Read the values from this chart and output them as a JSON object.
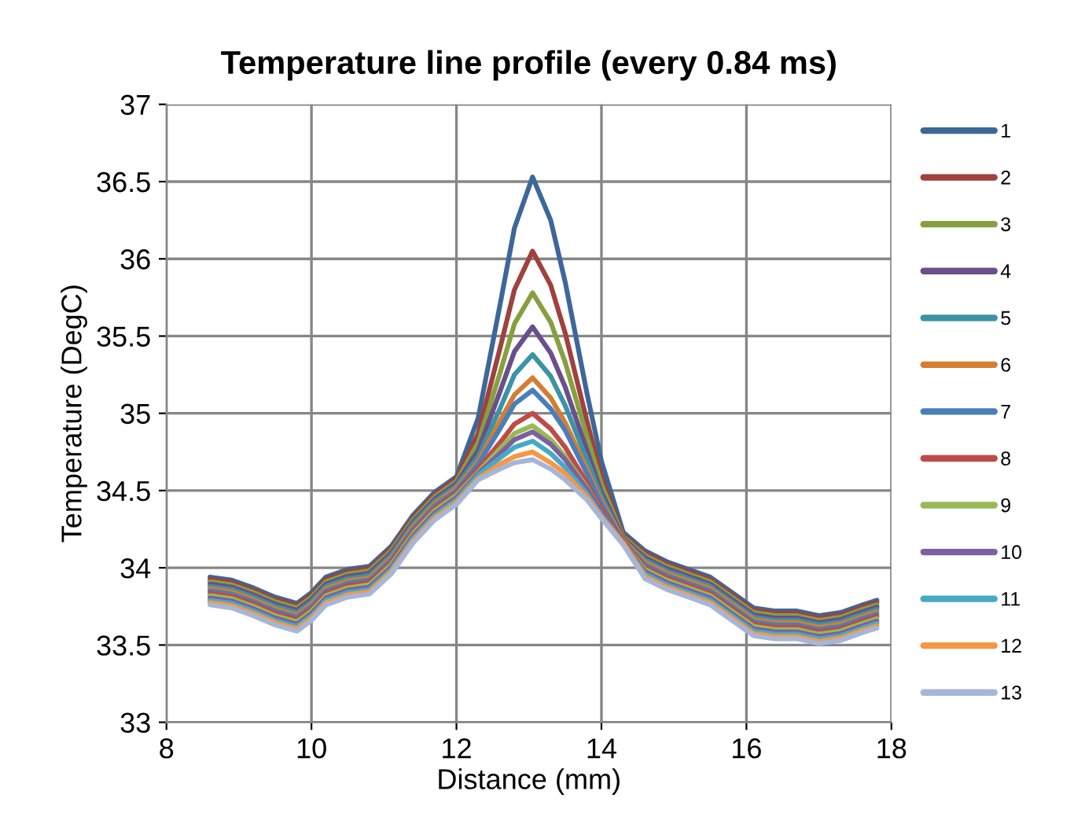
{
  "chart_data": {
    "type": "line",
    "title": "Temperature line profile (every 0.84 ms)",
    "xlabel": "Distance (mm)",
    "ylabel": "Temperature (DegC)",
    "x": [
      8.6,
      8.9,
      9.2,
      9.5,
      9.8,
      10.0,
      10.2,
      10.5,
      10.8,
      11.1,
      11.4,
      11.7,
      12.0,
      12.3,
      12.6,
      12.8,
      13.05,
      13.3,
      13.5,
      13.8,
      14.0,
      14.3,
      14.6,
      14.9,
      15.2,
      15.5,
      15.8,
      16.1,
      16.4,
      16.7,
      17.0,
      17.3,
      17.6,
      17.8
    ],
    "xlim": [
      8,
      18
    ],
    "xticks": [
      8,
      10,
      12,
      14,
      16,
      18
    ],
    "ylim": [
      33,
      37
    ],
    "yticks": [
      33,
      33.5,
      34,
      34.5,
      35,
      35.5,
      36,
      36.5,
      37
    ],
    "grid": true,
    "legend": "right",
    "marker": "none",
    "line_style": "solid",
    "series": [
      {
        "name": "1",
        "color": "#3d6799",
        "values": [
          33.94,
          33.92,
          33.87,
          33.81,
          33.77,
          33.84,
          33.94,
          33.99,
          34.01,
          34.14,
          34.34,
          34.49,
          34.59,
          34.97,
          35.7,
          36.2,
          36.53,
          36.25,
          35.85,
          35.13,
          34.69,
          34.23,
          34.11,
          34.04,
          33.99,
          33.94,
          33.84,
          33.74,
          33.72,
          33.72,
          33.69,
          33.71,
          33.76,
          33.79
        ]
      },
      {
        "name": "2",
        "color": "#a0413e",
        "values": [
          33.925,
          33.905,
          33.855,
          33.795,
          33.755,
          33.825,
          33.925,
          33.975,
          33.995,
          34.125,
          34.325,
          34.475,
          34.575,
          34.87,
          35.42,
          35.8,
          36.05,
          35.83,
          35.52,
          34.95,
          34.59,
          34.21,
          34.095,
          34.025,
          33.975,
          33.925,
          33.825,
          33.725,
          33.705,
          33.705,
          33.675,
          33.695,
          33.745,
          33.775
        ]
      },
      {
        "name": "3",
        "color": "#86a03f",
        "values": [
          33.91,
          33.89,
          33.84,
          33.78,
          33.74,
          33.81,
          33.91,
          33.96,
          33.98,
          34.11,
          34.31,
          34.46,
          34.56,
          34.81,
          35.26,
          35.58,
          35.78,
          35.59,
          35.33,
          34.85,
          34.54,
          34.2,
          34.08,
          34.01,
          33.96,
          33.91,
          33.81,
          33.71,
          33.69,
          33.69,
          33.66,
          33.68,
          33.73,
          33.76
        ]
      },
      {
        "name": "4",
        "color": "#6a4f8a",
        "values": [
          33.895,
          33.875,
          33.825,
          33.765,
          33.725,
          33.795,
          33.895,
          33.945,
          33.965,
          34.095,
          34.295,
          34.445,
          34.545,
          34.76,
          35.14,
          35.4,
          35.56,
          35.39,
          35.17,
          34.76,
          34.49,
          34.19,
          34.065,
          33.995,
          33.945,
          33.895,
          33.795,
          33.695,
          33.675,
          33.675,
          33.645,
          33.665,
          33.715,
          33.745
        ]
      },
      {
        "name": "5",
        "color": "#3a93a7",
        "values": [
          33.88,
          33.86,
          33.81,
          33.75,
          33.71,
          33.78,
          33.88,
          33.93,
          33.95,
          34.08,
          34.28,
          34.43,
          34.53,
          34.72,
          35.03,
          35.25,
          35.38,
          35.24,
          35.05,
          34.7,
          34.46,
          34.18,
          34.05,
          33.98,
          33.93,
          33.88,
          33.78,
          33.68,
          33.66,
          33.66,
          33.63,
          33.65,
          33.7,
          33.73
        ]
      },
      {
        "name": "6",
        "color": "#d57d32",
        "values": [
          33.865,
          33.845,
          33.795,
          33.735,
          33.695,
          33.765,
          33.865,
          33.915,
          33.935,
          34.065,
          34.265,
          34.415,
          34.515,
          34.69,
          34.95,
          35.12,
          35.23,
          35.1,
          34.94,
          34.64,
          34.43,
          34.18,
          34.035,
          33.965,
          33.915,
          33.865,
          33.765,
          33.665,
          33.645,
          33.645,
          33.615,
          33.635,
          33.685,
          33.715
        ]
      },
      {
        "name": "7",
        "color": "#4a7ebb",
        "values": [
          33.85,
          33.83,
          33.78,
          33.72,
          33.68,
          33.75,
          33.85,
          33.9,
          33.92,
          34.05,
          34.25,
          34.4,
          34.5,
          34.67,
          34.9,
          35.06,
          35.15,
          35.03,
          34.89,
          34.61,
          34.41,
          34.17,
          34.02,
          33.95,
          33.9,
          33.85,
          33.75,
          33.65,
          33.63,
          33.63,
          33.6,
          33.62,
          33.67,
          33.7
        ]
      },
      {
        "name": "8",
        "color": "#be4b48",
        "values": [
          33.835,
          33.815,
          33.765,
          33.705,
          33.665,
          33.735,
          33.835,
          33.885,
          33.905,
          34.035,
          34.235,
          34.385,
          34.485,
          34.64,
          34.81,
          34.93,
          35.0,
          34.9,
          34.78,
          34.55,
          34.38,
          34.17,
          34.005,
          33.935,
          33.885,
          33.835,
          33.735,
          33.635,
          33.615,
          33.615,
          33.585,
          33.605,
          33.655,
          33.685
        ]
      },
      {
        "name": "9",
        "color": "#98b954",
        "values": [
          33.82,
          33.8,
          33.75,
          33.69,
          33.65,
          33.72,
          33.82,
          33.87,
          33.89,
          34.02,
          34.22,
          34.37,
          34.47,
          34.62,
          34.77,
          34.87,
          34.92,
          34.83,
          34.72,
          34.52,
          34.36,
          34.16,
          33.99,
          33.92,
          33.87,
          33.82,
          33.72,
          33.62,
          33.6,
          33.6,
          33.57,
          33.59,
          33.64,
          33.67
        ]
      },
      {
        "name": "10",
        "color": "#7d60a0",
        "values": [
          33.805,
          33.785,
          33.735,
          33.675,
          33.635,
          33.705,
          33.805,
          33.855,
          33.875,
          34.005,
          34.205,
          34.355,
          34.455,
          34.61,
          34.74,
          34.83,
          34.88,
          34.8,
          34.7,
          34.51,
          34.36,
          34.16,
          33.975,
          33.905,
          33.855,
          33.805,
          33.705,
          33.605,
          33.585,
          33.585,
          33.555,
          33.575,
          33.625,
          33.655
        ]
      },
      {
        "name": "11",
        "color": "#46aac5",
        "values": [
          33.79,
          33.77,
          33.72,
          33.66,
          33.62,
          33.69,
          33.79,
          33.84,
          33.86,
          33.99,
          34.19,
          34.34,
          34.44,
          34.6,
          34.71,
          34.78,
          34.82,
          34.74,
          34.65,
          34.48,
          34.34,
          34.16,
          33.96,
          33.89,
          33.84,
          33.79,
          33.69,
          33.59,
          33.57,
          33.57,
          33.54,
          33.56,
          33.61,
          33.64
        ]
      },
      {
        "name": "12",
        "color": "#f79646",
        "values": [
          33.775,
          33.755,
          33.705,
          33.645,
          33.605,
          33.675,
          33.775,
          33.825,
          33.845,
          33.975,
          34.175,
          34.325,
          34.425,
          34.58,
          34.67,
          34.72,
          34.75,
          34.68,
          34.61,
          34.46,
          34.33,
          34.16,
          33.945,
          33.875,
          33.825,
          33.775,
          33.675,
          33.575,
          33.555,
          33.555,
          33.525,
          33.545,
          33.595,
          33.625
        ]
      },
      {
        "name": "13",
        "color": "#a5b6d8",
        "values": [
          33.76,
          33.74,
          33.69,
          33.63,
          33.59,
          33.66,
          33.76,
          33.81,
          33.83,
          33.96,
          34.16,
          34.31,
          34.41,
          34.57,
          34.64,
          34.68,
          34.7,
          34.64,
          34.57,
          34.44,
          34.32,
          34.15,
          33.93,
          33.86,
          33.81,
          33.76,
          33.66,
          33.56,
          33.54,
          33.54,
          33.51,
          33.53,
          33.58,
          33.61
        ]
      }
    ]
  }
}
